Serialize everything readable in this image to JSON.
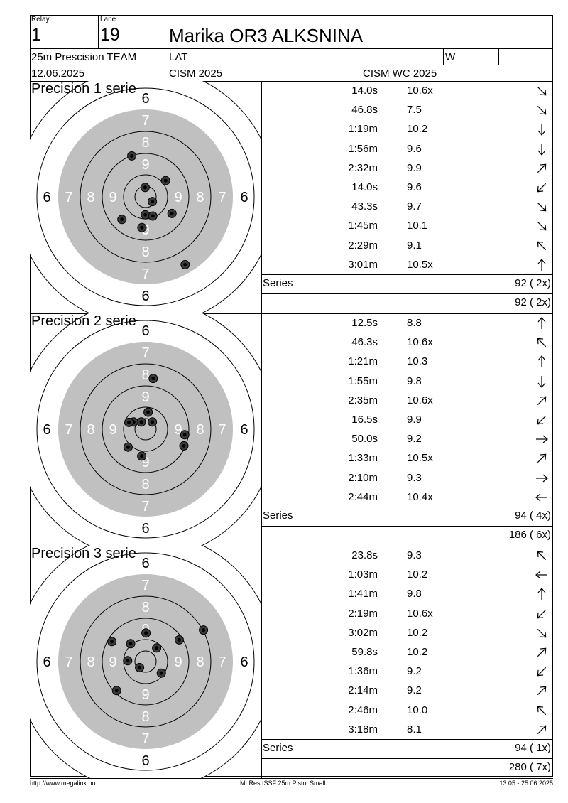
{
  "header": {
    "relay_label": "Relay",
    "relay": "1",
    "lane_label": "Lane",
    "lane": "19",
    "name": "Marika OR3 ALKSNINA",
    "event": "25m Prescision TEAM",
    "nation": "LAT",
    "gender": "W",
    "date": "12.06.2025",
    "competition": "CISM 2025",
    "championship": "CISM WC 2025"
  },
  "target_labels": {
    "r6": "6",
    "r7": "7",
    "r8": "8",
    "r9": "9"
  },
  "series_label": "Series",
  "series": [
    {
      "title": "Precision 1 serie",
      "shots": [
        {
          "time": "14.0s",
          "score": "10.6x",
          "dir": "down-right"
        },
        {
          "time": "46.8s",
          "score": "7.5",
          "dir": "down-right"
        },
        {
          "time": "1:19m",
          "score": "10.2",
          "dir": "down"
        },
        {
          "time": "1:56m",
          "score": "9.6",
          "dir": "down"
        },
        {
          "time": "2:32m",
          "score": "9.9",
          "dir": "up-right"
        },
        {
          "time": "14.0s",
          "score": "9.6",
          "dir": "down-left"
        },
        {
          "time": "43.3s",
          "score": "9.7",
          "dir": "down-right"
        },
        {
          "time": "1:45m",
          "score": "10.1",
          "dir": "down-right"
        },
        {
          "time": "2:29m",
          "score": "9.1",
          "dir": "up-left"
        },
        {
          "time": "3:01m",
          "score": "10.5x",
          "dir": "up"
        }
      ],
      "total": "92 ( 2x)",
      "cumulative": "92 ( 2x)",
      "hits": [
        [
          -19.4,
          -57.6
        ],
        [
          28.2,
          -22.8
        ],
        [
          -0.6,
          -13.2
        ],
        [
          9.6,
          6.6
        ],
        [
          -0.3,
          25.2
        ],
        [
          10.2,
          27
        ],
        [
          37.2,
          23.4
        ],
        [
          -33.3,
          31.8
        ],
        [
          -5.1,
          43.2
        ],
        [
          55.8,
          95.4
        ]
      ]
    },
    {
      "title": "Precision 2 serie",
      "shots": [
        {
          "time": "12.5s",
          "score": "8.8",
          "dir": "up"
        },
        {
          "time": "46.3s",
          "score": "10.6x",
          "dir": "up-left"
        },
        {
          "time": "1:21m",
          "score": "10.3",
          "dir": "up"
        },
        {
          "time": "1:55m",
          "score": "9.8",
          "dir": "down"
        },
        {
          "time": "2:35m",
          "score": "10.6x",
          "dir": "up-right"
        },
        {
          "time": "16.5s",
          "score": "9.9",
          "dir": "down-left"
        },
        {
          "time": "50.0s",
          "score": "9.2",
          "dir": "right"
        },
        {
          "time": "1:33m",
          "score": "10.5x",
          "dir": "up-right"
        },
        {
          "time": "2:10m",
          "score": "9.3",
          "dir": "right"
        },
        {
          "time": "2:44m",
          "score": "10.4x",
          "dir": "left"
        }
      ],
      "total": "94 ( 4x)",
      "cumulative": "186 ( 6x)",
      "hits": [
        [
          10.8,
          -71.4
        ],
        [
          3.6,
          -24
        ],
        [
          -6,
          -10.2
        ],
        [
          -16.8,
          -10.2
        ],
        [
          9.6,
          -10.2
        ],
        [
          -23.4,
          -9.6
        ],
        [
          55.2,
          7.8
        ],
        [
          54,
          23.4
        ],
        [
          -24.6,
          25.2
        ],
        [
          -5.4,
          37.8
        ]
      ]
    },
    {
      "title": "Precision 3 serie",
      "shots": [
        {
          "time": "23.8s",
          "score": "9.3",
          "dir": "up-left"
        },
        {
          "time": "1:03m",
          "score": "10.2",
          "dir": "left"
        },
        {
          "time": "1:41m",
          "score": "9.8",
          "dir": "up"
        },
        {
          "time": "2:19m",
          "score": "10.6x",
          "dir": "down-left"
        },
        {
          "time": "3:02m",
          "score": "10.2",
          "dir": "down-right"
        },
        {
          "time": "59.8s",
          "score": "10.2",
          "dir": "up-right"
        },
        {
          "time": "1:36m",
          "score": "9.2",
          "dir": "down-left"
        },
        {
          "time": "2:14m",
          "score": "9.2",
          "dir": "up-right"
        },
        {
          "time": "2:46m",
          "score": "10.0",
          "dir": "up-left"
        },
        {
          "time": "3:18m",
          "score": "8.1",
          "dir": "up-right"
        }
      ],
      "total": "94 ( 1x)",
      "cumulative": "280 ( 7x)",
      "hits": [
        [
          81.6,
          -44.4
        ],
        [
          0.6,
          -40.2
        ],
        [
          47.4,
          -30.6
        ],
        [
          -47.4,
          -28.2
        ],
        [
          -21,
          -25.2
        ],
        [
          15.6,
          -19.2
        ],
        [
          -25.2,
          -1.2
        ],
        [
          -8.4,
          8.4
        ],
        [
          22.2,
          16.2
        ],
        [
          -40.8,
          40.8
        ]
      ]
    }
  ],
  "footer": {
    "left": "http://www.megalink.no",
    "center": "MLRes ISSF 25m Pistol Small",
    "right": "13:05 - 25.06.2025"
  }
}
